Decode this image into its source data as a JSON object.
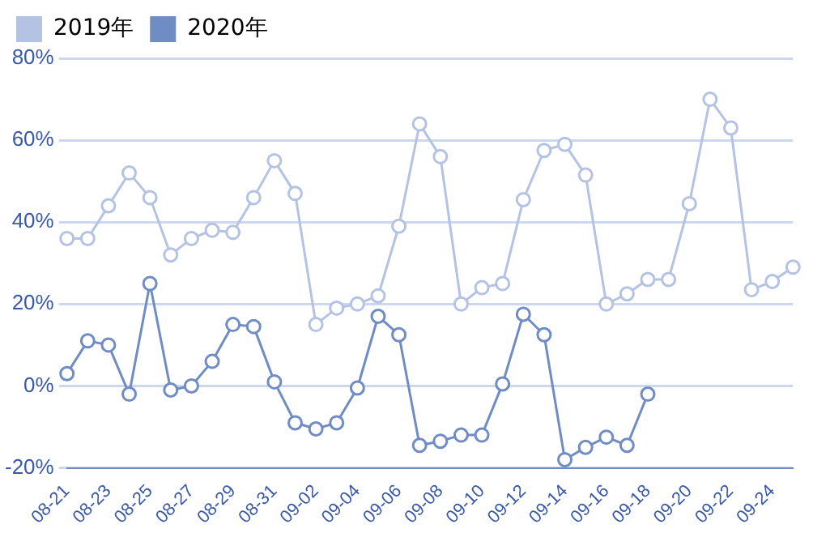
{
  "chart_data": {
    "type": "line",
    "categories": [
      "08-21",
      null,
      "08-23",
      null,
      "08-25",
      null,
      "08-27",
      null,
      "08-29",
      null,
      "08-31",
      null,
      "09-02",
      null,
      "09-04",
      null,
      "09-06",
      null,
      "09-08",
      null,
      "09-10",
      null,
      "09-12",
      null,
      "09-14",
      null,
      "09-16",
      null,
      "09-18",
      null,
      "09-20",
      null,
      "09-22",
      null,
      "09-24",
      null
    ],
    "series": [
      {
        "name": "2019年",
        "color": "#b4c3e3",
        "values": [
          36,
          36,
          44,
          52,
          46,
          32,
          36,
          38,
          37.5,
          46,
          55,
          47,
          15,
          19,
          20,
          22,
          39,
          64,
          56,
          20,
          24,
          25,
          45.5,
          57.5,
          59,
          51.5,
          20,
          22.5,
          26,
          26,
          44.5,
          70,
          63,
          23.5,
          25.5,
          29
        ]
      },
      {
        "name": "2020年",
        "color": "#6f8cc4",
        "values": [
          3,
          11,
          10,
          -2,
          25,
          -1,
          0,
          6,
          15,
          14.5,
          1,
          -9,
          -10.5,
          -9,
          -0.5,
          17,
          12.5,
          -14.5,
          -13.5,
          -12,
          -12,
          0.5,
          17.5,
          12.5,
          -18,
          -15,
          -12.5,
          -14.5,
          -2,
          null,
          null,
          null,
          null,
          null,
          null,
          null
        ]
      }
    ],
    "ylim": [
      -20,
      80
    ],
    "yticks": [
      {
        "value": -20,
        "label": "-20%"
      },
      {
        "value": 0,
        "label": "0%"
      },
      {
        "value": 20,
        "label": "20%"
      },
      {
        "value": 40,
        "label": "40%"
      },
      {
        "value": 60,
        "label": "60%"
      },
      {
        "value": 80,
        "label": "80%"
      }
    ],
    "grid": "y",
    "legend": "top left",
    "marker": "circle",
    "line_style": "solid"
  }
}
